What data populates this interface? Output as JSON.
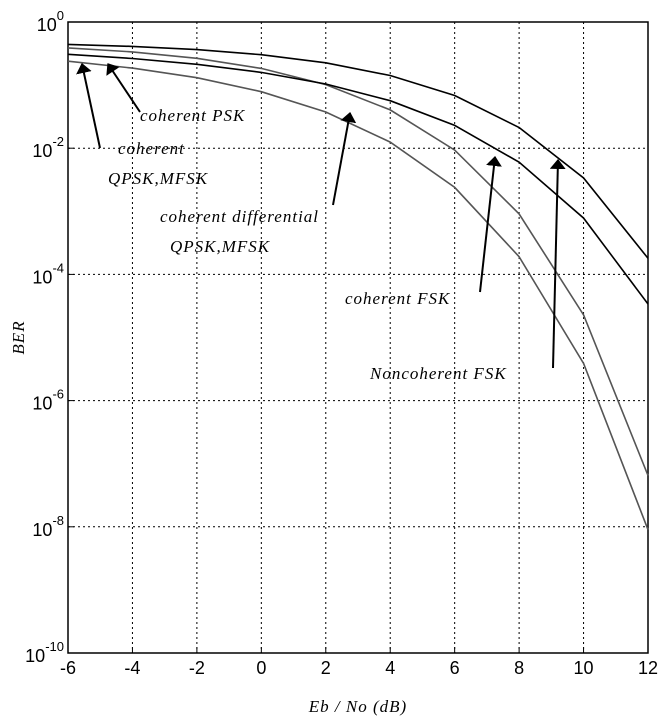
{
  "chart_data": {
    "type": "line",
    "ylabel": "BER",
    "xlabel": "Eb / No (dB)",
    "x": [
      -6,
      -4,
      -2,
      0,
      2,
      4,
      6,
      8,
      10,
      12
    ],
    "series": [
      {
        "color": "#555555",
        "values": [
          0.239,
          0.186,
          0.131,
          0.0786,
          0.0375,
          0.0125,
          0.00239,
          0.000191,
          3.87e-06,
          9e-09
        ]
      },
      {
        "color": "#555555",
        "values": [
          0.389,
          0.336,
          0.266,
          0.184,
          0.102,
          0.0405,
          0.00934,
          0.00091,
          2.27e-05,
          6.5e-08
        ]
      },
      {
        "color": "#000000",
        "values": [
          0.308,
          0.264,
          0.214,
          0.159,
          0.104,
          0.0565,
          0.023,
          0.006,
          0.00078,
          3.4e-05
        ]
      },
      {
        "color": "#000000",
        "values": [
          0.441,
          0.41,
          0.365,
          0.303,
          0.226,
          0.142,
          0.0683,
          0.0213,
          0.00337,
          0.00018
        ]
      }
    ],
    "xlim": [
      -6,
      12
    ],
    "xticks": [
      -6,
      -4,
      -2,
      0,
      2,
      4,
      6,
      8,
      10,
      12
    ],
    "ylim": [
      1e-10,
      1
    ],
    "log_y": true,
    "yticks": [
      {
        "value": 1,
        "label": "10^0"
      },
      {
        "value": 0.01,
        "label": "10^-2"
      },
      {
        "value": 0.0001,
        "label": "10^-4"
      },
      {
        "value": 1e-06,
        "label": "10^-6"
      },
      {
        "value": 1e-08,
        "label": "10^-8"
      },
      {
        "value": 1e-10,
        "label": "10^-10"
      }
    ],
    "grid": true,
    "annotations": [
      {
        "lines": [
          "coherent PSK"
        ]
      },
      {
        "lines": [
          "coherent",
          "QPSK,MFSK"
        ]
      },
      {
        "lines": [
          "coherent differential",
          "QPSK,MFSK"
        ]
      },
      {
        "lines": [
          "coherent FSK"
        ]
      },
      {
        "lines": [
          "Noncoherent FSK"
        ]
      }
    ]
  }
}
